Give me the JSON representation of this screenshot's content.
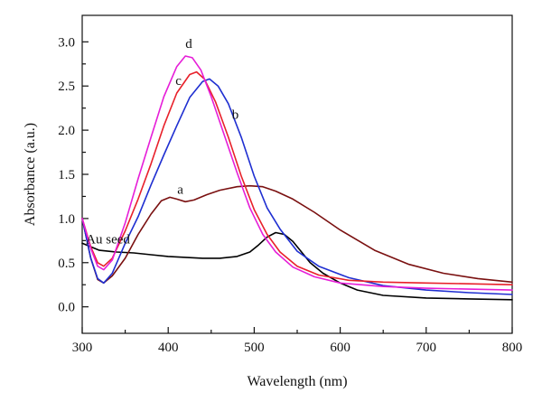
{
  "chart_data": {
    "type": "line",
    "xlabel": "Wavelength (nm)",
    "ylabel": "Absorbance (a.u.)",
    "xlim": [
      300,
      800
    ],
    "ylim": [
      -0.3,
      3.3
    ],
    "x_ticks": [
      300,
      400,
      500,
      600,
      700,
      800
    ],
    "x_tick_labels": [
      "300",
      "400",
      "500",
      "600",
      "700",
      "800"
    ],
    "y_ticks": [
      0.0,
      0.5,
      1.0,
      1.5,
      2.0,
      2.5,
      3.0
    ],
    "y_tick_labels": [
      "0.0",
      "0.5",
      "1.0",
      "1.5",
      "2.0",
      "2.5",
      "3.0"
    ],
    "grid": false,
    "series": [
      {
        "name": "Au seed",
        "color": "#000000",
        "label_at": [
          330,
          0.72
        ],
        "points": [
          [
            300,
            0.72
          ],
          [
            320,
            0.64
          ],
          [
            340,
            0.62
          ],
          [
            360,
            0.61
          ],
          [
            380,
            0.59
          ],
          [
            400,
            0.57
          ],
          [
            420,
            0.56
          ],
          [
            440,
            0.55
          ],
          [
            460,
            0.55
          ],
          [
            480,
            0.57
          ],
          [
            495,
            0.62
          ],
          [
            505,
            0.7
          ],
          [
            515,
            0.79
          ],
          [
            525,
            0.84
          ],
          [
            535,
            0.82
          ],
          [
            545,
            0.74
          ],
          [
            555,
            0.62
          ],
          [
            565,
            0.5
          ],
          [
            580,
            0.38
          ],
          [
            600,
            0.27
          ],
          [
            620,
            0.19
          ],
          [
            650,
            0.13
          ],
          [
            700,
            0.1
          ],
          [
            750,
            0.09
          ],
          [
            800,
            0.08
          ]
        ]
      },
      {
        "name": "a",
        "color": "#7a1010",
        "label_at": [
          414,
          1.28
        ],
        "points": [
          [
            300,
            1.0
          ],
          [
            310,
            0.55
          ],
          [
            318,
            0.31
          ],
          [
            325,
            0.27
          ],
          [
            335,
            0.35
          ],
          [
            350,
            0.55
          ],
          [
            365,
            0.82
          ],
          [
            380,
            1.05
          ],
          [
            392,
            1.2
          ],
          [
            402,
            1.24
          ],
          [
            410,
            1.22
          ],
          [
            420,
            1.19
          ],
          [
            430,
            1.21
          ],
          [
            445,
            1.27
          ],
          [
            460,
            1.32
          ],
          [
            480,
            1.36
          ],
          [
            495,
            1.37
          ],
          [
            510,
            1.36
          ],
          [
            525,
            1.31
          ],
          [
            545,
            1.22
          ],
          [
            570,
            1.07
          ],
          [
            600,
            0.87
          ],
          [
            640,
            0.64
          ],
          [
            680,
            0.48
          ],
          [
            720,
            0.38
          ],
          [
            760,
            0.32
          ],
          [
            800,
            0.28
          ]
        ]
      },
      {
        "name": "b",
        "color": "#1f2fd1",
        "label_at": [
          478,
          2.13
        ],
        "points": [
          [
            300,
            1.0
          ],
          [
            310,
            0.55
          ],
          [
            318,
            0.32
          ],
          [
            325,
            0.27
          ],
          [
            335,
            0.38
          ],
          [
            350,
            0.72
          ],
          [
            365,
            1.02
          ],
          [
            380,
            1.38
          ],
          [
            395,
            1.72
          ],
          [
            410,
            2.05
          ],
          [
            425,
            2.37
          ],
          [
            440,
            2.55
          ],
          [
            448,
            2.58
          ],
          [
            458,
            2.5
          ],
          [
            470,
            2.3
          ],
          [
            485,
            1.92
          ],
          [
            500,
            1.48
          ],
          [
            515,
            1.12
          ],
          [
            530,
            0.88
          ],
          [
            550,
            0.63
          ],
          [
            575,
            0.46
          ],
          [
            610,
            0.33
          ],
          [
            650,
            0.24
          ],
          [
            700,
            0.19
          ],
          [
            750,
            0.16
          ],
          [
            800,
            0.14
          ]
        ]
      },
      {
        "name": "c",
        "color": "#e8202a",
        "label_at": [
          412,
          2.51
        ],
        "points": [
          [
            300,
            1.0
          ],
          [
            310,
            0.68
          ],
          [
            318,
            0.5
          ],
          [
            325,
            0.46
          ],
          [
            335,
            0.55
          ],
          [
            350,
            0.86
          ],
          [
            365,
            1.22
          ],
          [
            380,
            1.62
          ],
          [
            395,
            2.05
          ],
          [
            410,
            2.42
          ],
          [
            425,
            2.63
          ],
          [
            433,
            2.66
          ],
          [
            442,
            2.58
          ],
          [
            455,
            2.32
          ],
          [
            470,
            1.92
          ],
          [
            485,
            1.48
          ],
          [
            500,
            1.1
          ],
          [
            515,
            0.82
          ],
          [
            530,
            0.62
          ],
          [
            550,
            0.46
          ],
          [
            575,
            0.36
          ],
          [
            610,
            0.3
          ],
          [
            650,
            0.28
          ],
          [
            700,
            0.27
          ],
          [
            750,
            0.26
          ],
          [
            800,
            0.25
          ]
        ]
      },
      {
        "name": "d",
        "color": "#e61ed8",
        "label_at": [
          424,
          2.93
        ],
        "points": [
          [
            300,
            1.0
          ],
          [
            310,
            0.66
          ],
          [
            318,
            0.46
          ],
          [
            325,
            0.42
          ],
          [
            335,
            0.53
          ],
          [
            350,
            0.95
          ],
          [
            365,
            1.45
          ],
          [
            380,
            1.92
          ],
          [
            395,
            2.38
          ],
          [
            410,
            2.72
          ],
          [
            420,
            2.84
          ],
          [
            428,
            2.82
          ],
          [
            438,
            2.68
          ],
          [
            450,
            2.38
          ],
          [
            465,
            1.95
          ],
          [
            480,
            1.52
          ],
          [
            495,
            1.12
          ],
          [
            510,
            0.82
          ],
          [
            525,
            0.62
          ],
          [
            545,
            0.45
          ],
          [
            570,
            0.34
          ],
          [
            600,
            0.27
          ],
          [
            650,
            0.23
          ],
          [
            700,
            0.21
          ],
          [
            750,
            0.2
          ],
          [
            800,
            0.19
          ]
        ]
      }
    ]
  }
}
